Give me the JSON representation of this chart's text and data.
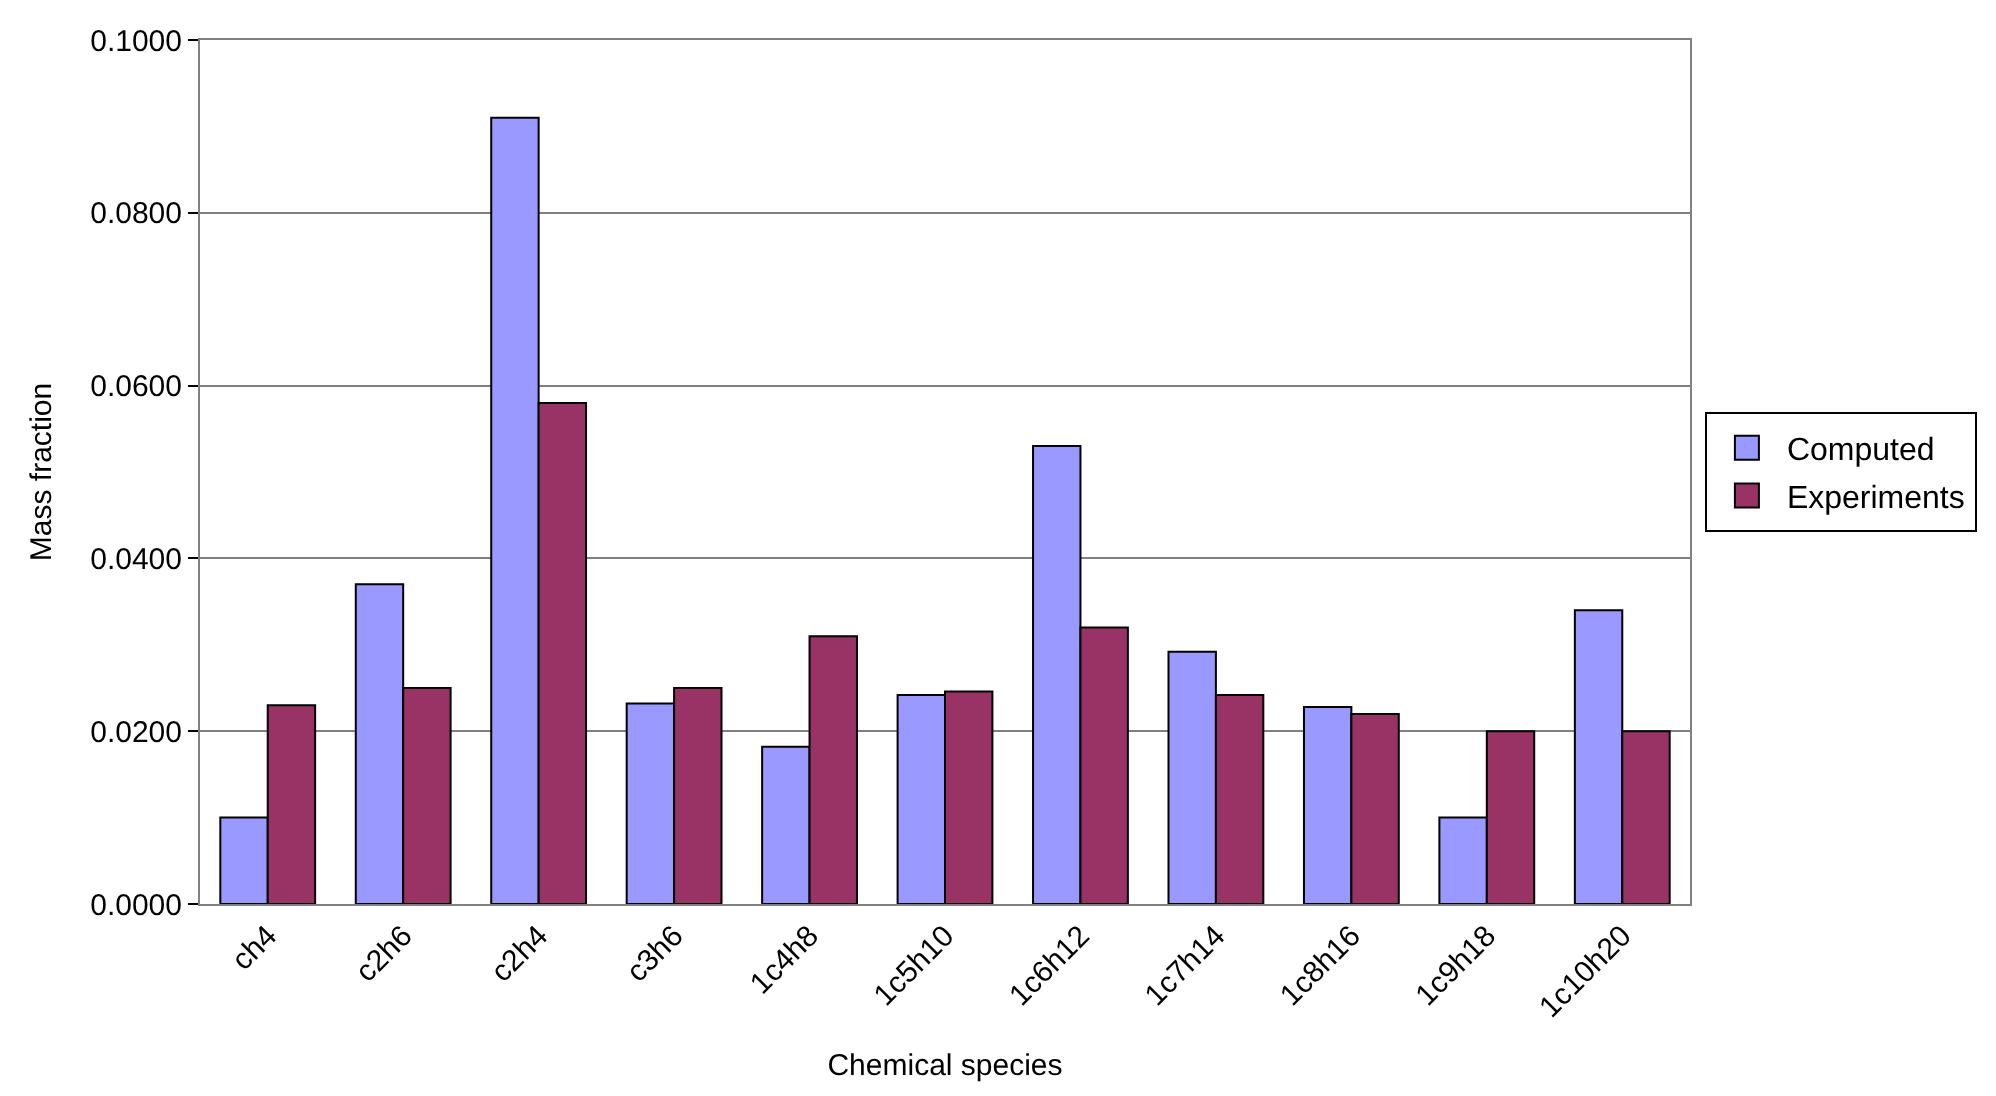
{
  "chart_data": {
    "type": "bar",
    "xlabel": "Chemical species",
    "ylabel": "Mass fraction",
    "categories": [
      "ch4",
      "c2h6",
      "c2h4",
      "c3h6",
      "1c4h8",
      "1c5h10",
      "1c6h12",
      "1c7h14",
      "1c8h16",
      "1c9h18",
      "1c10h20"
    ],
    "series": [
      {
        "name": "Computed",
        "color": "#9999ff",
        "values": [
          0.01,
          0.037,
          0.091,
          0.0232,
          0.0182,
          0.0242,
          0.053,
          0.0292,
          0.0228,
          0.01,
          0.034
        ]
      },
      {
        "name": "Experiments",
        "color": "#993366",
        "values": [
          0.023,
          0.025,
          0.058,
          0.025,
          0.031,
          0.0246,
          0.032,
          0.0242,
          0.022,
          0.02,
          0.02
        ]
      }
    ],
    "ylim": [
      0,
      0.1
    ],
    "yticks": [
      {
        "value": 0,
        "label": "0.0000"
      },
      {
        "value": 0.02,
        "label": "0.0200"
      },
      {
        "value": 0.04,
        "label": "0.0400"
      },
      {
        "value": 0.06,
        "label": "0.0600"
      },
      {
        "value": 0.08,
        "label": "0.0800"
      },
      {
        "value": 0.1,
        "label": "0.1000"
      }
    ],
    "grid": "y",
    "legend": "right"
  }
}
